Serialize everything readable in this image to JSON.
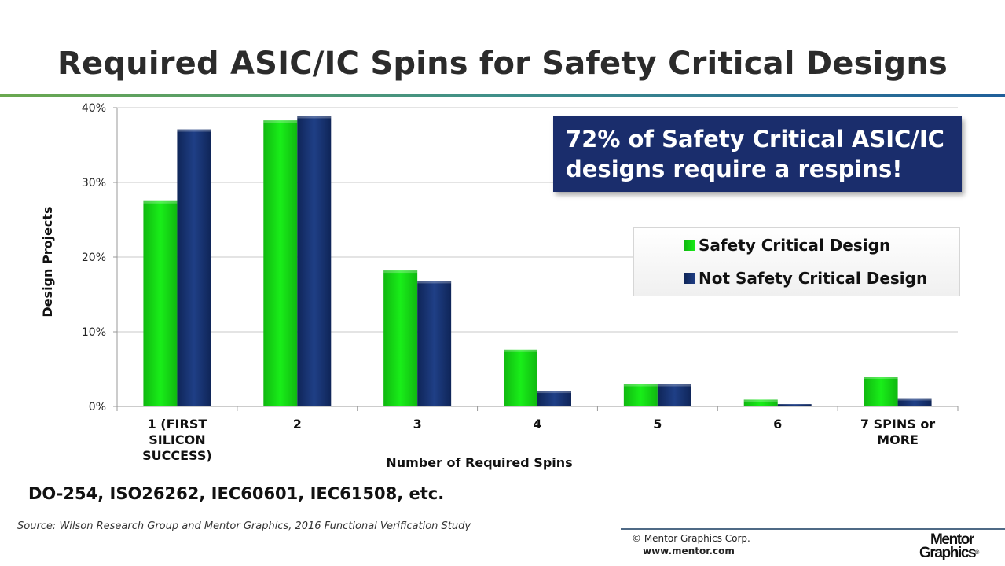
{
  "title": "Required ASIC/IC Spins for Safety Critical Designs",
  "callout": "72% of Safety Critical ASIC/IC designs require a respins!",
  "standards_note": "DO-254, ISO26262, IEC60601, IEC61508, etc.",
  "source": "Source:  Wilson Research Group and Mentor Graphics, 2016 Functional Verification Study",
  "footer": {
    "copyright": "© Mentor Graphics Corp.",
    "website": "www.mentor.com",
    "logo_line1": "Mentor",
    "logo_line2": "Graphics",
    "logo_reg": "®"
  },
  "colors": {
    "safety": "#19ee19",
    "safety_dark": "#10b810",
    "not_safety": "#1f3f86",
    "not_safety_dark": "#0f2558",
    "callout_bg": "#1a2d6c"
  },
  "chart_data": {
    "type": "bar",
    "xlabel": "Number of Required Spins",
    "ylabel": "Design Projects",
    "ylim": [
      0,
      40
    ],
    "yticks": [
      "0%",
      "10%",
      "20%",
      "30%",
      "40%"
    ],
    "grid": true,
    "legend_position": "right",
    "categories": [
      [
        "1 (FIRST",
        "SILICON",
        "SUCCESS)"
      ],
      [
        "2"
      ],
      [
        "3"
      ],
      [
        "4"
      ],
      [
        "5"
      ],
      [
        "6"
      ],
      [
        "7 SPINS or",
        "MORE"
      ]
    ],
    "series": [
      {
        "name": "Safety Critical Design",
        "values": [
          27.5,
          38.3,
          18.2,
          7.6,
          3.0,
          0.9,
          4.0
        ]
      },
      {
        "name": "Not Safety Critical Design",
        "values": [
          37.1,
          38.9,
          16.8,
          2.1,
          3.0,
          0.3,
          1.1
        ]
      }
    ]
  }
}
